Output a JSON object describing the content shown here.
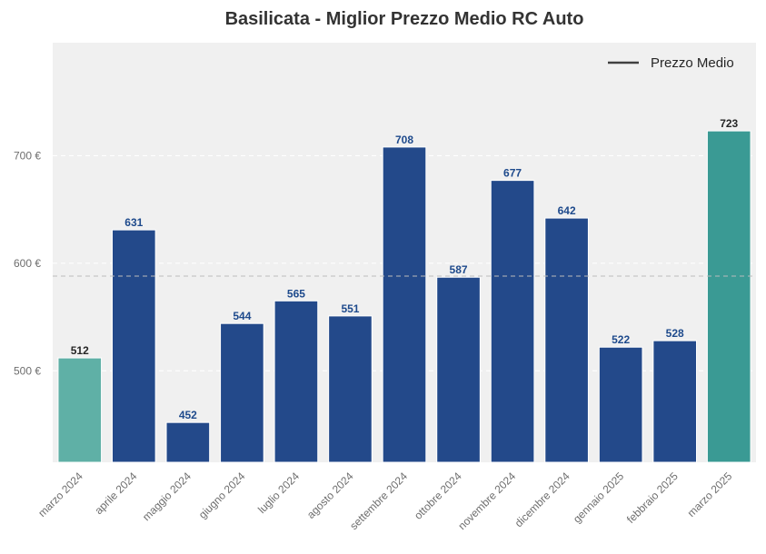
{
  "chart_data": {
    "type": "bar",
    "title": "Basilicata - Miglior Prezzo Medio RC Auto",
    "xlabel": "",
    "ylabel": "",
    "categories": [
      "marzo 2024",
      "aprile 2024",
      "maggio 2024",
      "giugno 2024",
      "luglio 2024",
      "agosto 2024",
      "settembre 2024",
      "ottobre 2024",
      "novembre 2024",
      "dicembre 2024",
      "gennaio 2025",
      "febbraio 2025",
      "marzo 2025"
    ],
    "values": [
      512,
      631,
      452,
      544,
      565,
      551,
      708,
      587,
      677,
      642,
      522,
      528,
      723
    ],
    "value_labels": [
      "512",
      "631",
      "452",
      "544",
      "565",
      "551",
      "708",
      "587",
      "677",
      "642",
      "522",
      "528",
      "723"
    ],
    "ylim": [
      415,
      805
    ],
    "yticks": [
      500,
      600,
      700
    ],
    "ytick_labels": [
      "500 €",
      "600 €",
      "700 €"
    ],
    "mean_line": 588,
    "legend": {
      "position": "top-right",
      "entries": [
        "Prezzo Medio"
      ]
    },
    "grid": true,
    "colors": {
      "bar_default": "#23498a",
      "bar_first": "#5fb0a6",
      "bar_last": "#3a9a94",
      "label_default": "#1e4a8c",
      "label_highlight": "#262626",
      "plot_background": "#f0f0f0",
      "mean_line": "#bbbbbb",
      "legend_line": "#404040"
    }
  }
}
